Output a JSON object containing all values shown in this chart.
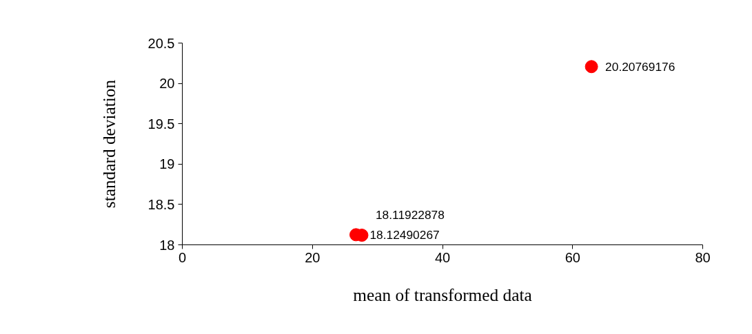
{
  "chart_data": {
    "type": "scatter",
    "xlabel": "mean of transformed data",
    "ylabel": "standard deviation",
    "x": [
      26.7,
      27.6,
      62.9
    ],
    "series": [
      {
        "color": "#ff0000",
        "values": [
          18.12490267,
          18.11922878,
          20.20769176
        ]
      }
    ],
    "xlim": [
      0,
      80
    ],
    "xticks": [
      0,
      20,
      40,
      60,
      80
    ],
    "ylim": [
      18,
      20.5
    ],
    "yticks": [
      18,
      18.5,
      19,
      19.5,
      20,
      20.5
    ],
    "data_labels": true,
    "grid": false,
    "marker": "circle"
  }
}
